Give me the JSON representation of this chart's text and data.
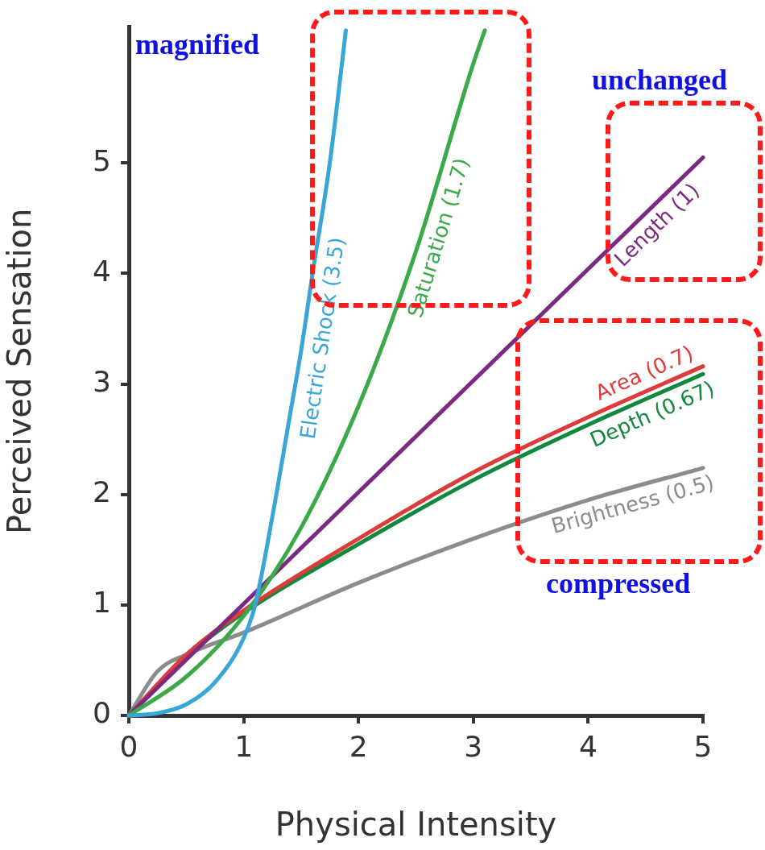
{
  "chart_data": {
    "type": "line",
    "xlabel": "Physical Intensity",
    "ylabel": "Perceived Sensation",
    "xlim": [
      0,
      5
    ],
    "ylim": [
      0,
      6.23
    ],
    "xticks": [
      0,
      1,
      2,
      3,
      4,
      5
    ],
    "yticks": [
      0,
      1,
      2,
      3,
      4,
      5
    ],
    "grid": false,
    "legend": false,
    "marker": "none",
    "line_style": "solid",
    "annotations": [
      "magnified",
      "unchanged",
      "compressed"
    ],
    "series": [
      {
        "name": "Electric Shock (3.5)",
        "color": "#3aa6d8",
        "x": [
          0,
          0.25,
          0.5,
          0.75,
          1,
          1.1,
          1.25,
          1.4,
          1.5,
          1.6,
          1.75,
          1.89
        ],
        "values": [
          0,
          0.02,
          0.1,
          0.3,
          0.7,
          1.0,
          1.8,
          2.7,
          3.3,
          4.0,
          5.0,
          6.2
        ]
      },
      {
        "name": "Saturation (1.7)",
        "color": "#3aaa48",
        "x": [
          0,
          0.5,
          1,
          1.5,
          2,
          2.5,
          3,
          3.1
        ],
        "values": [
          0,
          0.35,
          0.9,
          1.7,
          2.8,
          4.2,
          5.9,
          6.2
        ]
      },
      {
        "name": "Length (1)",
        "color": "#7b2a82",
        "x": [
          0,
          5
        ],
        "values": [
          0,
          5.05
        ]
      },
      {
        "name": "Area (0.7)",
        "color": "#dd3c3a",
        "x": [
          0,
          0.5,
          1,
          2,
          3,
          4,
          5
        ],
        "values": [
          0,
          0.55,
          0.95,
          1.6,
          2.2,
          2.7,
          3.16
        ]
      },
      {
        "name": "Depth (0.67)",
        "color": "#12883e",
        "x": [
          0,
          0.5,
          1,
          2,
          3,
          4,
          5
        ],
        "values": [
          0,
          0.53,
          0.93,
          1.55,
          2.13,
          2.63,
          3.09
        ]
      },
      {
        "name": "Brightness (0.5)",
        "color": "#8c8c8c",
        "x": [
          0,
          0.25,
          0.5,
          1,
          2,
          3,
          4,
          5
        ],
        "values": [
          0,
          0.4,
          0.55,
          0.75,
          1.2,
          1.6,
          1.95,
          2.24
        ]
      }
    ]
  }
}
